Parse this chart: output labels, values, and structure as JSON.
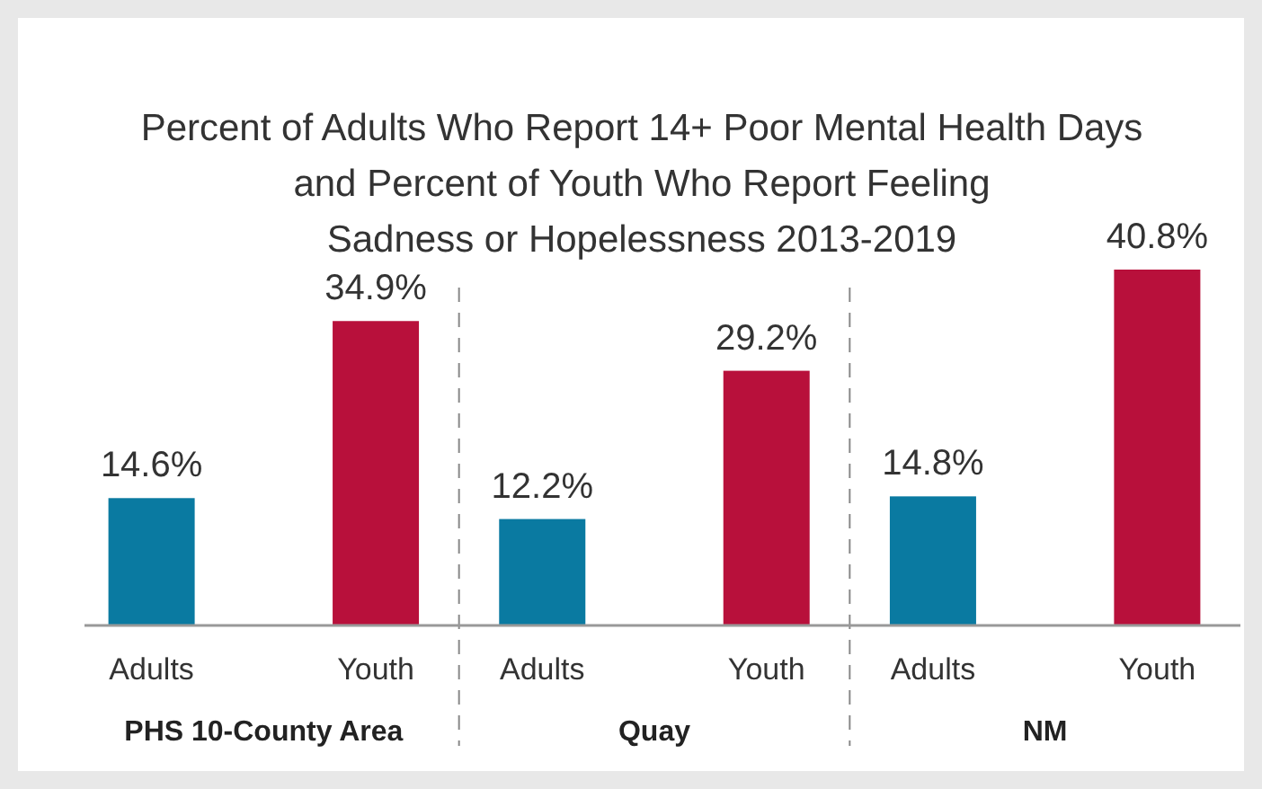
{
  "chart_data": {
    "type": "bar",
    "title": "Percent of Adults Who Report 14+ Poor Mental Health Days\nand Percent of Youth Who Report Feeling\nSadness or Hopelessness 2013-2019",
    "categories": [
      "PHS 10-County Area",
      "Quay",
      "NM"
    ],
    "series": [
      {
        "name": "Adults",
        "color": "#0a7aa1",
        "values": [
          14.6,
          12.2,
          14.8
        ],
        "value_labels": [
          "14.6%",
          "12.2%",
          "14.8%"
        ]
      },
      {
        "name": "Youth",
        "color": "#b8103b",
        "values": [
          34.9,
          29.2,
          40.8
        ],
        "value_labels": [
          "34.9%",
          "29.2%",
          "40.8%"
        ]
      }
    ]
  }
}
